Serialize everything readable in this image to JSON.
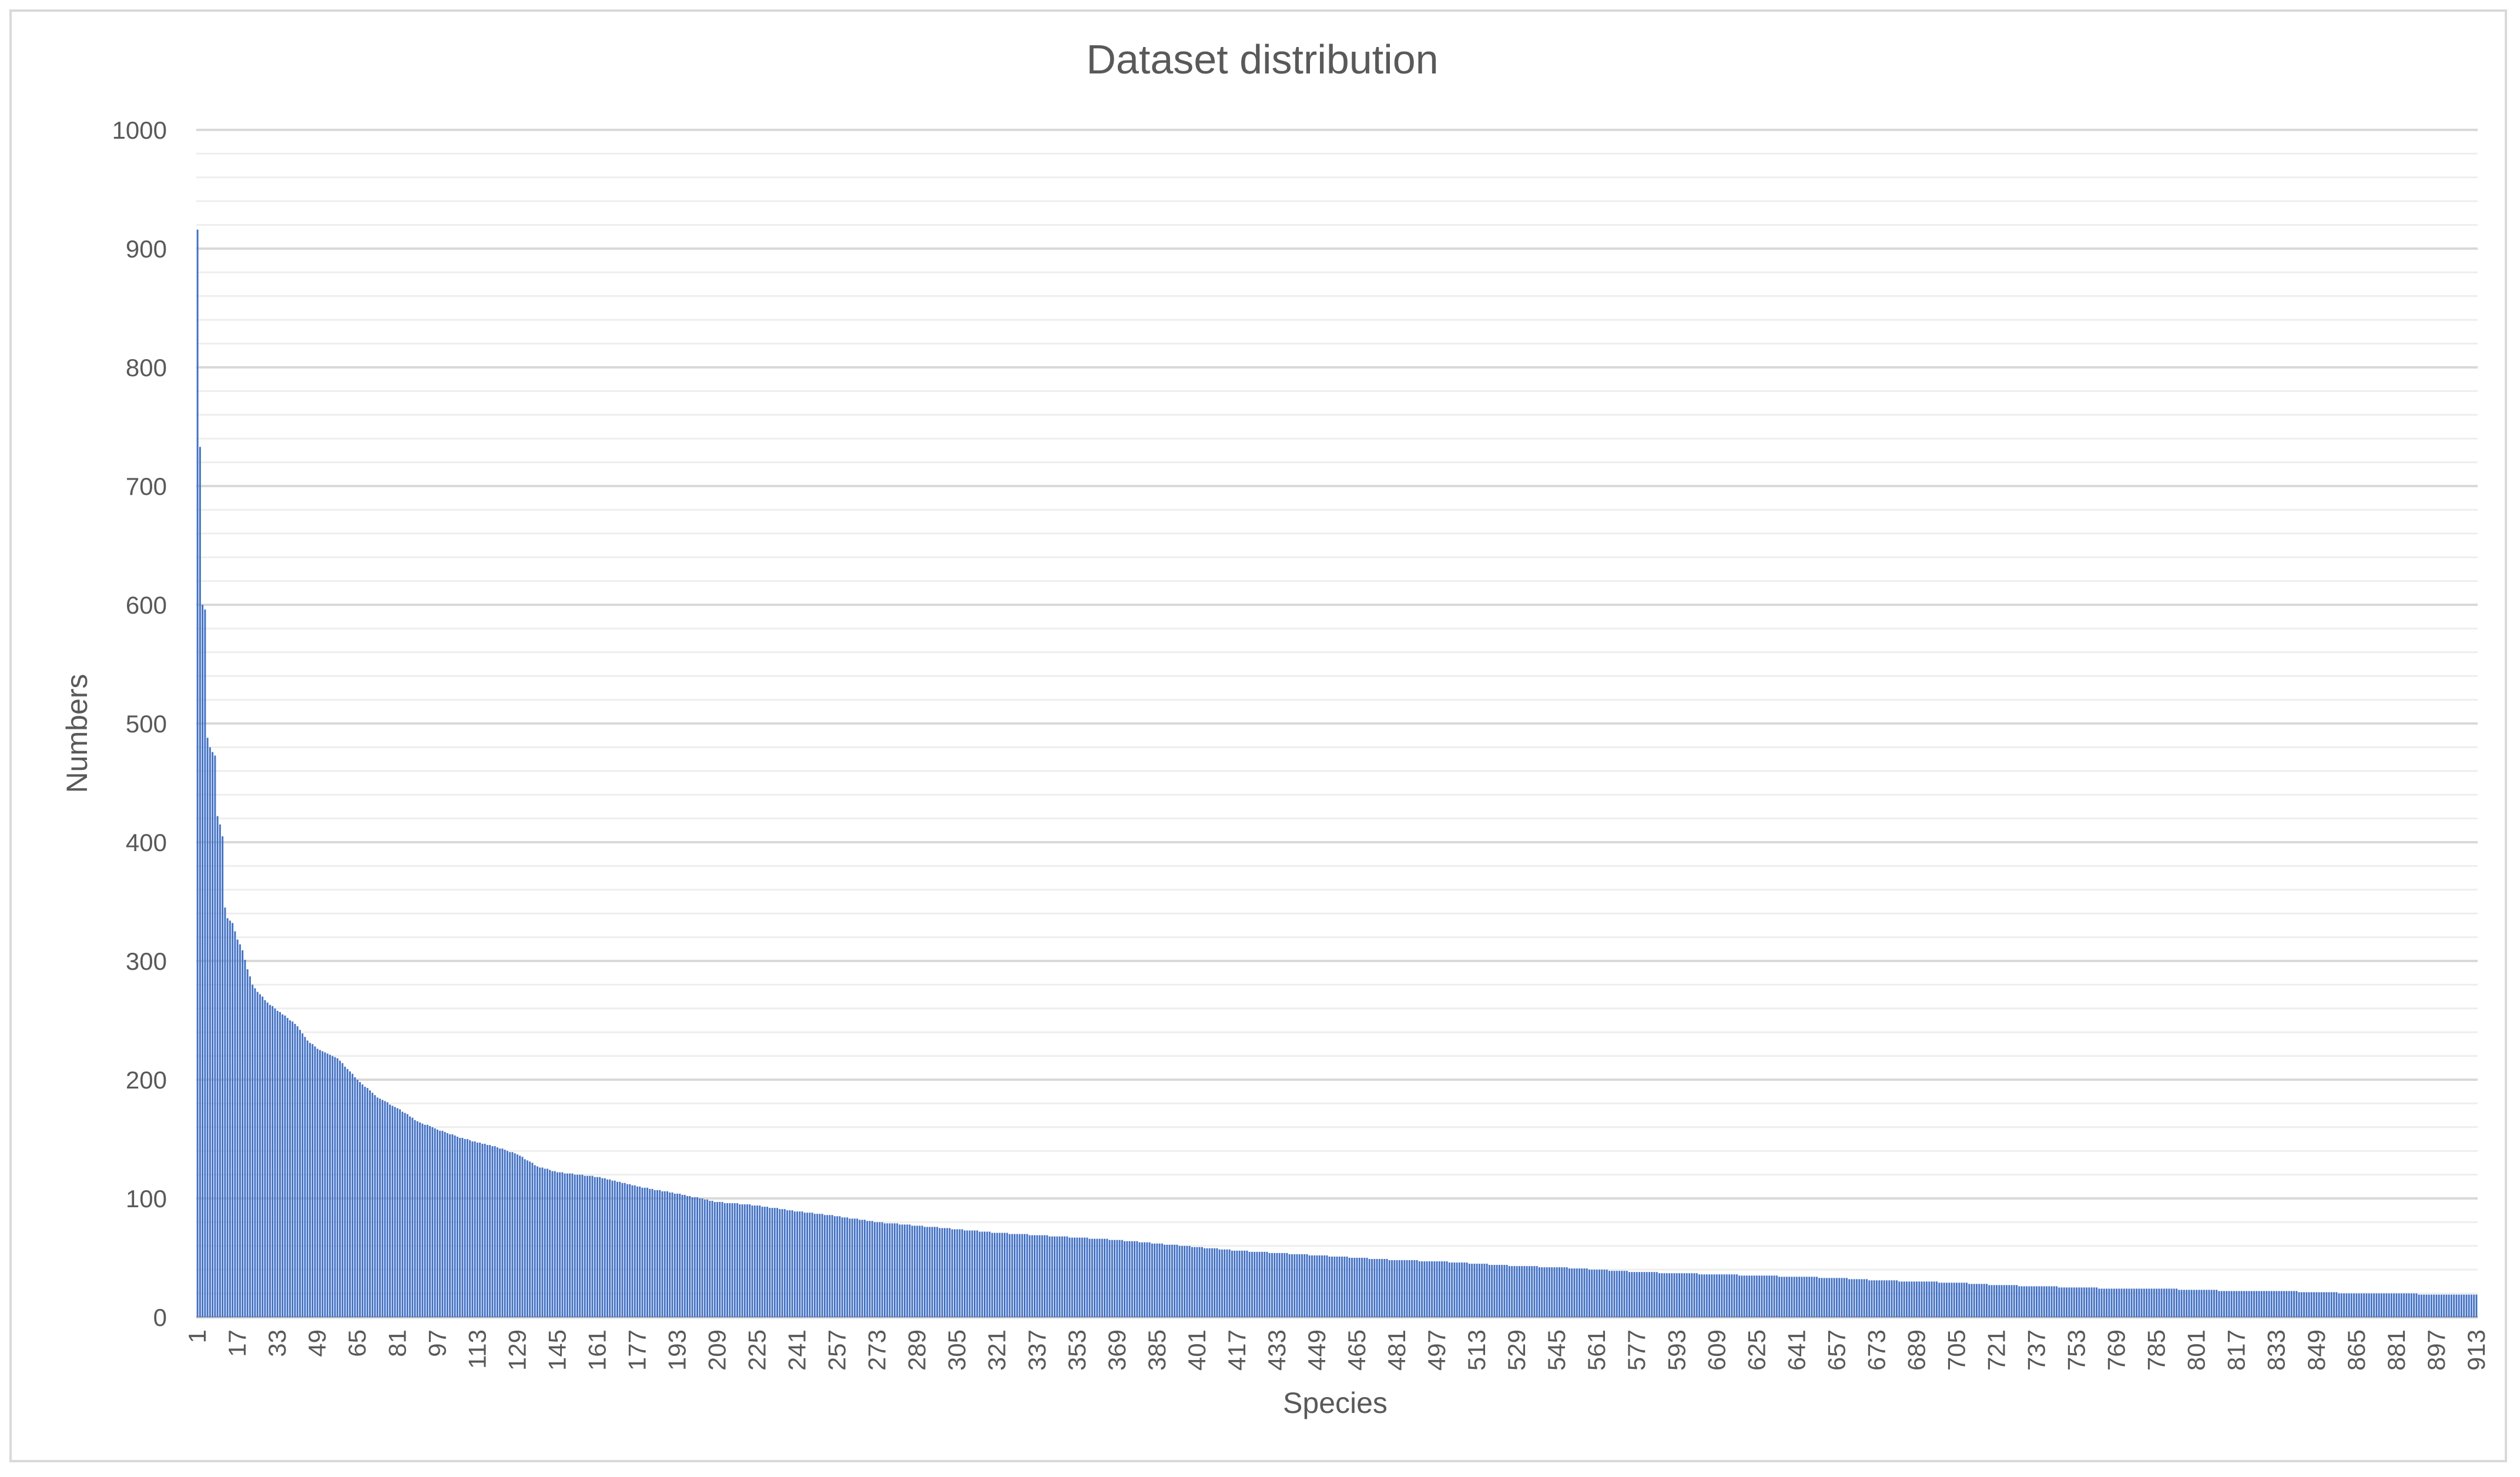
{
  "chart_data": {
    "type": "bar",
    "title": "Dataset distribution",
    "xlabel": "Species",
    "ylabel": "Numbers",
    "ylim": [
      0,
      1000
    ],
    "y_major_ticks": [
      0,
      100,
      200,
      300,
      400,
      500,
      600,
      700,
      800,
      900,
      1000
    ],
    "y_minor_step": 20,
    "x_count": 913,
    "x_tick_labels": [
      "1",
      "17",
      "33",
      "49",
      "65",
      "81",
      "97",
      "113",
      "129",
      "145",
      "161",
      "177",
      "193",
      "209",
      "225",
      "241",
      "257",
      "273",
      "289",
      "305",
      "321",
      "337",
      "353",
      "369",
      "385",
      "401",
      "417",
      "433",
      "449",
      "465",
      "481",
      "497",
      "513",
      "529",
      "545",
      "561",
      "577",
      "593",
      "609",
      "625",
      "641",
      "657",
      "673",
      "689",
      "705",
      "721",
      "737",
      "753",
      "769",
      "785",
      "801",
      "817",
      "833",
      "849",
      "865",
      "881",
      "897",
      "913"
    ],
    "grid": true,
    "legend": "none",
    "bar_color": "#4472c4",
    "values_description": "Species sorted by descending count; anchor points (species index, count) read from the chart",
    "anchors": [
      [
        1,
        916
      ],
      [
        2,
        733
      ],
      [
        3,
        600
      ],
      [
        4,
        596
      ],
      [
        5,
        488
      ],
      [
        6,
        480
      ],
      [
        7,
        476
      ],
      [
        8,
        473
      ],
      [
        9,
        422
      ],
      [
        10,
        415
      ],
      [
        11,
        405
      ],
      [
        12,
        345
      ],
      [
        13,
        336
      ],
      [
        15,
        332
      ],
      [
        17,
        318
      ],
      [
        19,
        309
      ],
      [
        21,
        293
      ],
      [
        23,
        280
      ],
      [
        25,
        274
      ],
      [
        29,
        265
      ],
      [
        33,
        258
      ],
      [
        37,
        252
      ],
      [
        41,
        245
      ],
      [
        45,
        233
      ],
      [
        49,
        226
      ],
      [
        57,
        218
      ],
      [
        65,
        200
      ],
      [
        73,
        185
      ],
      [
        81,
        176
      ],
      [
        89,
        165
      ],
      [
        97,
        158
      ],
      [
        105,
        152
      ],
      [
        113,
        147
      ],
      [
        121,
        143
      ],
      [
        129,
        137
      ],
      [
        137,
        127
      ],
      [
        145,
        122
      ],
      [
        161,
        118
      ],
      [
        177,
        110
      ],
      [
        193,
        104
      ],
      [
        209,
        97
      ],
      [
        225,
        94
      ],
      [
        241,
        89
      ],
      [
        257,
        85
      ],
      [
        273,
        80
      ],
      [
        289,
        77
      ],
      [
        305,
        74
      ],
      [
        321,
        71
      ],
      [
        337,
        69
      ],
      [
        353,
        67
      ],
      [
        369,
        65
      ],
      [
        385,
        62
      ],
      [
        401,
        59
      ],
      [
        417,
        56
      ],
      [
        433,
        54
      ],
      [
        449,
        52
      ],
      [
        465,
        50
      ],
      [
        481,
        48
      ],
      [
        497,
        47
      ],
      [
        513,
        45
      ],
      [
        529,
        43
      ],
      [
        545,
        42
      ],
      [
        561,
        40
      ],
      [
        577,
        38
      ],
      [
        593,
        37
      ],
      [
        609,
        36
      ],
      [
        625,
        35
      ],
      [
        641,
        34
      ],
      [
        657,
        33
      ],
      [
        673,
        31
      ],
      [
        689,
        30
      ],
      [
        705,
        29
      ],
      [
        721,
        27
      ],
      [
        737,
        26
      ],
      [
        753,
        25
      ],
      [
        769,
        24
      ],
      [
        785,
        24
      ],
      [
        801,
        23
      ],
      [
        817,
        22
      ],
      [
        833,
        22
      ],
      [
        849,
        21
      ],
      [
        865,
        20
      ],
      [
        881,
        20
      ],
      [
        897,
        19
      ],
      [
        913,
        19
      ]
    ]
  }
}
